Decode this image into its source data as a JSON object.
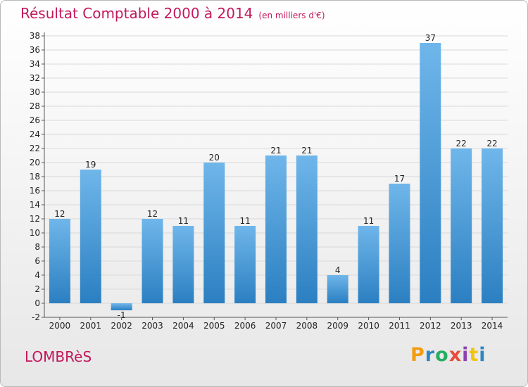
{
  "header": {
    "title": "Résultat Comptable 2000 à 2014",
    "unit": "(en milliers d'€)"
  },
  "footer": {
    "commune": "LOMBRèS",
    "brand": "Proxiti"
  },
  "colors": {
    "title": "#c2185b",
    "bar_top": "#6fb6ea",
    "bar_bottom": "#2b7fc1",
    "grid": "#d9d9d9"
  },
  "chart_data": {
    "type": "bar",
    "categories": [
      "2000",
      "2001",
      "2002",
      "2003",
      "2004",
      "2005",
      "2006",
      "2007",
      "2008",
      "2009",
      "2010",
      "2011",
      "2012",
      "2013",
      "2014"
    ],
    "values": [
      12,
      19,
      -1,
      12,
      11,
      20,
      11,
      21,
      21,
      4,
      11,
      17,
      37,
      22,
      22
    ],
    "ylim": [
      -2,
      38
    ],
    "yticks": [
      -2,
      0,
      2,
      4,
      6,
      8,
      10,
      12,
      14,
      16,
      18,
      20,
      22,
      24,
      26,
      28,
      30,
      32,
      34,
      36,
      38
    ],
    "grid": true,
    "xlabel": "",
    "ylabel": ""
  }
}
